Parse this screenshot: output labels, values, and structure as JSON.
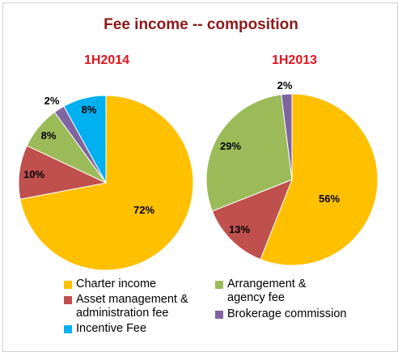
{
  "title": "Fee income -- composition",
  "colors": {
    "title": "#8b1a1a",
    "subtitle": "#e0141e",
    "charter": "#ffc000",
    "asset": "#c0504d",
    "arrangement": "#9bbb59",
    "brokerage": "#8064a2",
    "incentive": "#00b0f0"
  },
  "chart_data": [
    {
      "type": "pie",
      "title": "1H2014",
      "slices": [
        {
          "name": "Charter income",
          "value": 72,
          "label": "72%",
          "color": "#ffc000"
        },
        {
          "name": "Asset management & administration fee",
          "value": 10,
          "label": "10%",
          "color": "#c0504d"
        },
        {
          "name": "Arrangement & agency fee",
          "value": 8,
          "label": "8%",
          "color": "#9bbb59"
        },
        {
          "name": "Brokerage commission",
          "value": 2,
          "label": "2%",
          "color": "#8064a2"
        },
        {
          "name": "Incentive Fee",
          "value": 8,
          "label": "8%",
          "color": "#00b0f0"
        }
      ]
    },
    {
      "type": "pie",
      "title": "1H2013",
      "slices": [
        {
          "name": "Charter income",
          "value": 56,
          "label": "56%",
          "color": "#ffc000"
        },
        {
          "name": "Asset management & administration fee",
          "value": 13,
          "label": "13%",
          "color": "#c0504d"
        },
        {
          "name": "Arrangement & agency fee",
          "value": 29,
          "label": "29%",
          "color": "#9bbb59"
        },
        {
          "name": "Brokerage commission",
          "value": 2,
          "label": "2%",
          "color": "#8064a2"
        }
      ]
    }
  ],
  "legend": [
    {
      "label": "Charter income",
      "color": "#ffc000"
    },
    {
      "label": "Arrangement & agency fee",
      "color": "#9bbb59"
    },
    {
      "label": "Asset management & administration fee",
      "color": "#c0504d"
    },
    {
      "label": "Brokerage commission",
      "color": "#8064a2"
    },
    {
      "label": "Incentive Fee",
      "color": "#00b0f0"
    }
  ]
}
